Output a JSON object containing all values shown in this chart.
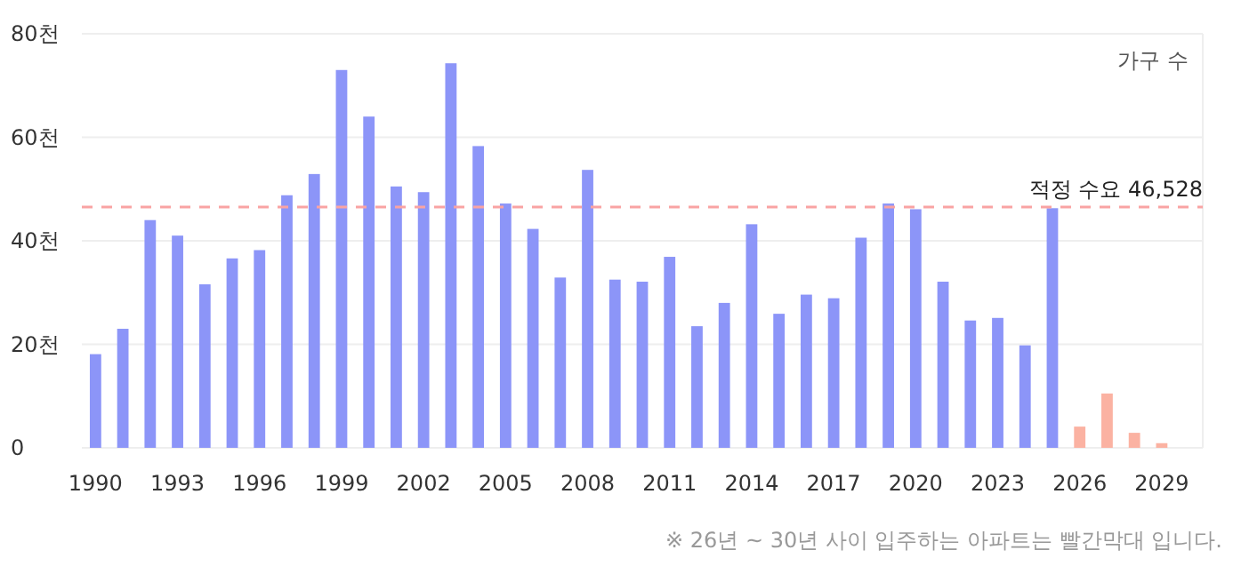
{
  "chart_data": {
    "type": "bar",
    "categories": [
      "1990",
      null,
      null,
      "1993",
      null,
      null,
      "1996",
      null,
      null,
      "1999",
      null,
      null,
      "2002",
      null,
      null,
      "2005",
      null,
      null,
      "2008",
      null,
      null,
      "2011",
      null,
      null,
      "2014",
      null,
      null,
      "2017",
      null,
      null,
      "2020",
      null,
      null,
      "2023",
      null,
      null,
      "2026",
      null,
      null,
      "2029"
    ],
    "values": [
      18.1,
      23.0,
      44.0,
      41.0,
      31.6,
      36.6,
      38.2,
      48.8,
      52.9,
      73.0,
      64.0,
      50.5,
      49.4,
      74.3,
      58.3,
      47.2,
      42.3,
      32.9,
      53.7,
      32.5,
      32.1,
      36.9,
      23.5,
      28.0,
      43.2,
      25.9,
      29.6,
      28.9,
      40.6,
      47.2,
      46.1,
      32.1,
      24.6,
      25.1,
      19.8,
      46.3,
      4.1,
      10.5,
      2.9,
      0.9
    ],
    "colors": [
      "#8c95f8",
      "#8c95f8",
      "#8c95f8",
      "#8c95f8",
      "#8c95f8",
      "#8c95f8",
      "#8c95f8",
      "#8c95f8",
      "#8c95f8",
      "#8c95f8",
      "#8c95f8",
      "#8c95f8",
      "#8c95f8",
      "#8c95f8",
      "#8c95f8",
      "#8c95f8",
      "#8c95f8",
      "#8c95f8",
      "#8c95f8",
      "#8c95f8",
      "#8c95f8",
      "#8c95f8",
      "#8c95f8",
      "#8c95f8",
      "#8c95f8",
      "#8c95f8",
      "#8c95f8",
      "#8c95f8",
      "#8c95f8",
      "#8c95f8",
      "#8c95f8",
      "#8c95f8",
      "#8c95f8",
      "#8c95f8",
      "#8c95f8",
      "#8c95f8",
      "#fbb2a2",
      "#fbb2a2",
      "#fbb2a2",
      "#fbb2a2"
    ],
    "ylim": [
      0,
      80
    ],
    "yticks": [
      0,
      {
        "value": 20,
        "label": "20천"
      },
      {
        "value": 40,
        "label": "40천"
      },
      {
        "value": 60,
        "label": "60천"
      },
      {
        "value": 80,
        "label": "80천"
      }
    ],
    "grid": "y",
    "ref_lines": [
      {
        "axis": "y",
        "value": 46.528,
        "label": "적정 수요 46,528",
        "color": "#f9a3a3",
        "line_style": "dashed"
      }
    ],
    "annotations": [
      "가구 수",
      "※ 26년 ~ 30년 사이 입주하는 아파트는 빨간막대 입니다."
    ]
  }
}
